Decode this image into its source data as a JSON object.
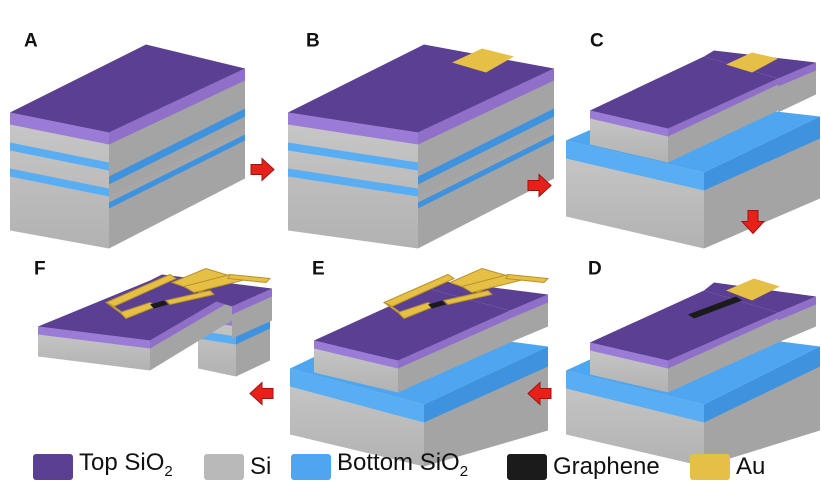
{
  "steps": [
    {
      "label": "A"
    },
    {
      "label": "B"
    },
    {
      "label": "C"
    },
    {
      "label": "D"
    },
    {
      "label": "E"
    },
    {
      "label": "F"
    }
  ],
  "legend": {
    "top_sio2": {
      "text": "Top SiO",
      "sub": "2",
      "color": "#5b3f93"
    },
    "si": {
      "text": "Si",
      "color": "#b9b9b9"
    },
    "bottom_sio2": {
      "text": "Bottom SiO",
      "sub": "2",
      "color": "#4ea6f0"
    },
    "graphene": {
      "text": "Graphene",
      "color": "#1b1b1b"
    },
    "au": {
      "text": "Au",
      "color": "#e6bf45"
    }
  },
  "arrow_color": "#e8201a",
  "arrow_icons": [
    "arrow-right-icon",
    "arrow-right-icon",
    "arrow-down-icon",
    "arrow-left-icon",
    "arrow-left-icon"
  ]
}
